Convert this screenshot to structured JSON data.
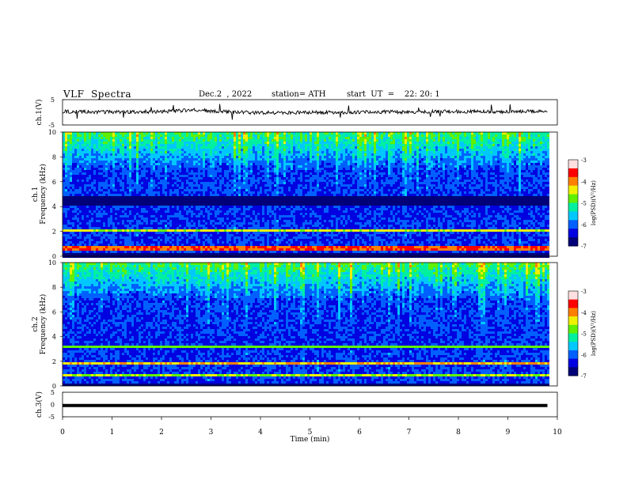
{
  "header": {
    "title": "VLF  Spectra",
    "date": "Dec.2  , 2022",
    "station": "station= ATH",
    "start_ut": "start  UT  =    22: 20: 1"
  },
  "chart_data": [
    {
      "type": "line",
      "name": "ch1-waveform",
      "ylabel": "ch.1(V)",
      "ylim": [
        -5,
        5
      ],
      "yticks": [
        "5",
        "-5"
      ],
      "x_range": [
        0,
        10
      ],
      "data_extent_min": 9.8,
      "trace": {
        "x": [
          0,
          1,
          2,
          2.7,
          3,
          4,
          5,
          6,
          7,
          8,
          9,
          9.8
        ],
        "y": [
          0.3,
          0.1,
          0.3,
          0.9,
          0.5,
          -0.2,
          -0.1,
          0.1,
          0.2,
          0.3,
          0.2,
          0.6
        ]
      }
    },
    {
      "type": "heatmap",
      "name": "ch1-spectrogram",
      "ylabel_top": "ch.1",
      "ylabel": "Frequency (kHz)",
      "ylim": [
        0,
        10
      ],
      "yticks": [
        "0",
        "2",
        "4",
        "6",
        "8",
        "10"
      ],
      "colorbar": {
        "label": "log(PSD)(V²/Hz)",
        "range": [
          -7,
          -3
        ],
        "ticks": [
          "-3",
          "-4",
          "-5",
          "-6",
          "-7"
        ]
      },
      "bands_khz": [
        {
          "from": 4.1,
          "to": 4.9,
          "level": -6.9
        },
        {
          "from": 2.0,
          "to": 2.3,
          "level": -4.5
        },
        {
          "from": 0.6,
          "to": 1.0,
          "level": -3.8
        },
        {
          "from": 0.0,
          "to": 0.3,
          "level": -6.8
        }
      ]
    },
    {
      "type": "heatmap",
      "name": "ch2-spectrogram",
      "ylabel_top": "ch.2",
      "ylabel": "Frequency (kHz)",
      "ylim": [
        0,
        10
      ],
      "yticks": [
        "0",
        "2",
        "4",
        "6",
        "8",
        "10"
      ],
      "colorbar": {
        "label": "log(PSD)(V²/Hz)",
        "range": [
          -7,
          -3
        ],
        "ticks": [
          "-3",
          "-4",
          "-5",
          "-6",
          "-7"
        ]
      },
      "bands_khz": [
        {
          "from": 1.8,
          "to": 2.1,
          "level": -4.2
        },
        {
          "from": 3.2,
          "to": 3.4,
          "level": -4.8
        },
        {
          "from": 0.9,
          "to": 1.1,
          "level": -4.6
        },
        {
          "from": 0.0,
          "to": 0.2,
          "level": -6.8
        }
      ]
    },
    {
      "type": "line",
      "name": "ch3-waveform",
      "ylabel": "ch.3(V)",
      "ylim": [
        -5,
        5
      ],
      "yticks": [
        "5",
        "0",
        "-5"
      ],
      "x_range": [
        0,
        9.8
      ],
      "level": -0.4
    }
  ],
  "xaxis": {
    "label": "Time (min)",
    "ticks": [
      "0",
      "1",
      "2",
      "3",
      "4",
      "5",
      "6",
      "7",
      "8",
      "9",
      "10"
    ],
    "range": [
      0,
      10
    ]
  },
  "colors": {
    "colormap": [
      "#000078",
      "#0000e0",
      "#0060ff",
      "#00c8ff",
      "#00f0a0",
      "#60f000",
      "#f0f000",
      "#ff8000",
      "#ff0000",
      "#ffe0e0"
    ]
  }
}
